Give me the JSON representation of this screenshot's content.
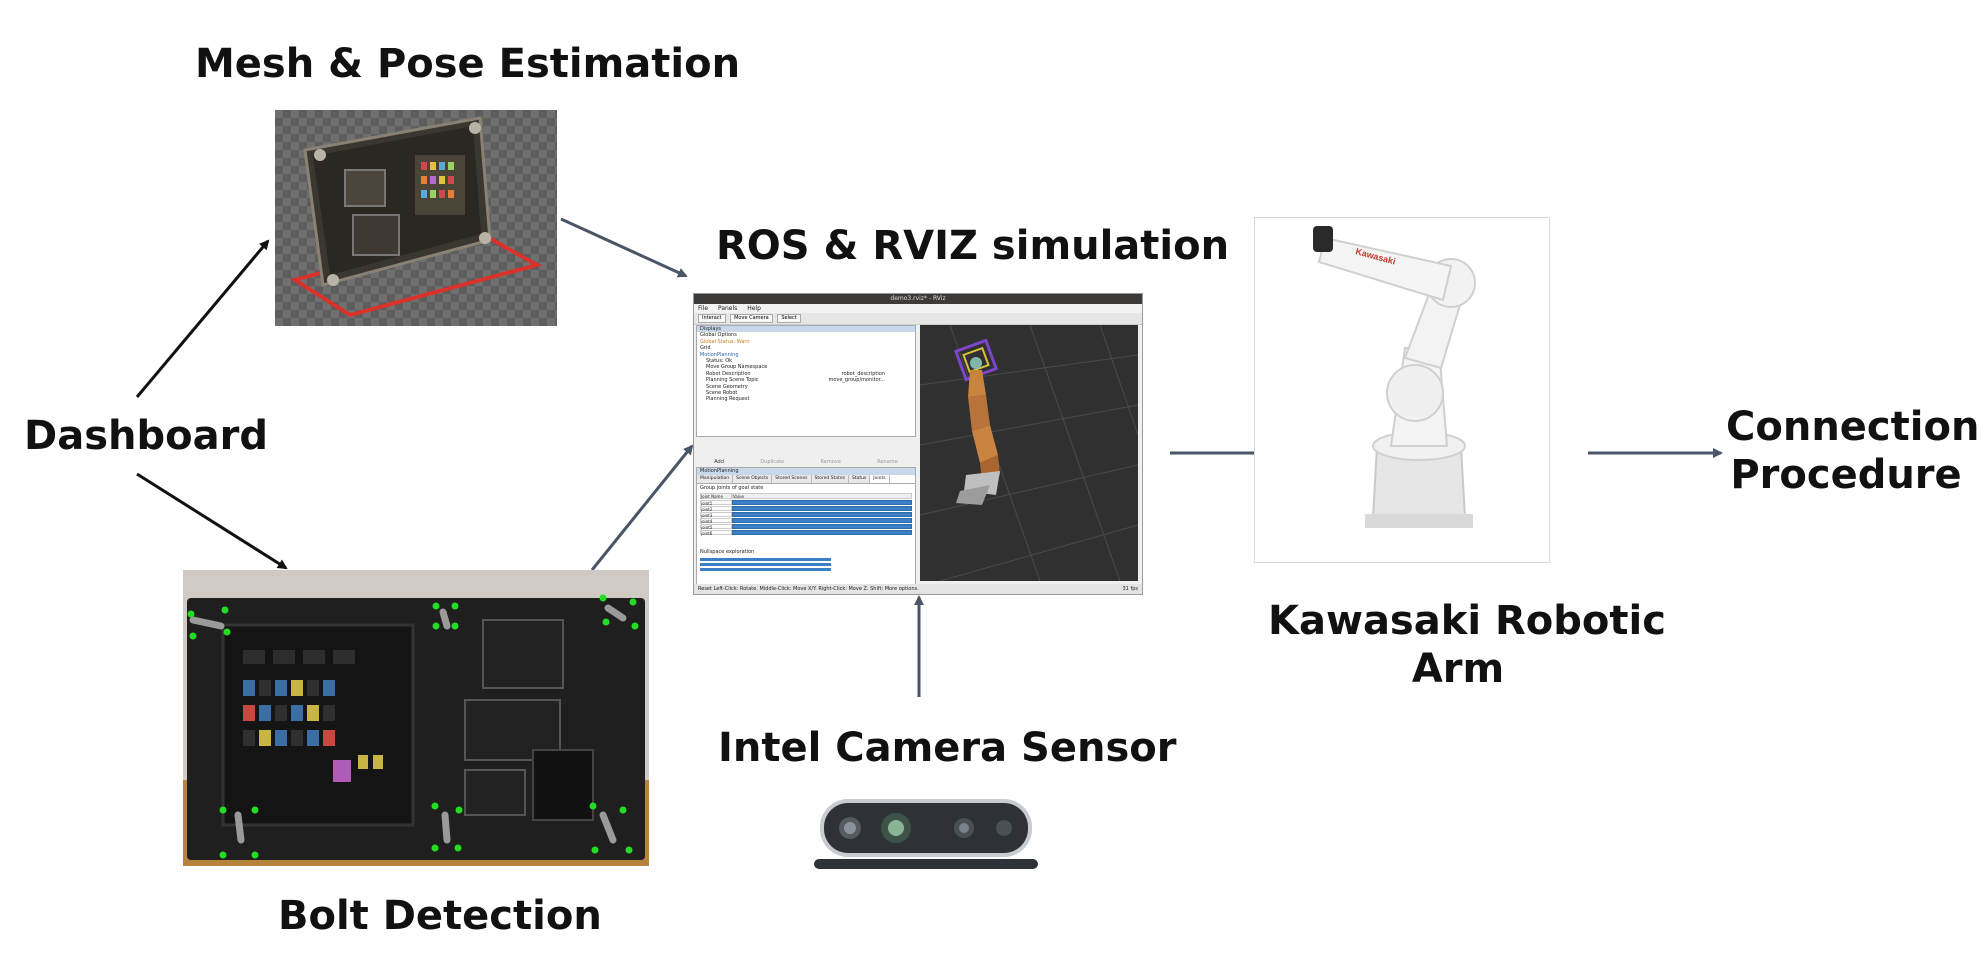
{
  "labels": {
    "mesh": "Mesh & Pose Estimation",
    "dashboard": "Dashboard",
    "bolt": "Bolt Detection",
    "ros": "ROS & RVIZ simulation",
    "camera": "Intel Camera Sensor",
    "kawasaki_line1": "Kawasaki Robotic",
    "kawasaki_line2": "Arm",
    "connection_line1": "Connection",
    "connection_line2": "Procedure"
  },
  "rviz": {
    "title": "demo3.rviz* - RViz",
    "menu": [
      "File",
      "Panels",
      "Help"
    ],
    "tools": [
      "Interact",
      "Move Camera",
      "Select"
    ],
    "displays_header": "Displays",
    "displays": [
      "Global Options",
      "Global Status: Warn",
      "Grid",
      "MotionPlanning",
      "Status: Ok",
      "Move Group Namespace",
      "Robot Description",
      "Planning Scene Topic",
      "Scene Geometry",
      "Scene Robot",
      "Planning Request"
    ],
    "display_values": [
      "robot_description",
      "move_group/monitor..."
    ],
    "buttons": [
      "Add",
      "Duplicate",
      "Remove",
      "Rename"
    ],
    "mp_header": "MotionPlanning",
    "tabs": [
      "Manipulation",
      "Scene Objects",
      "Stored Scenes",
      "Stored States",
      "Status",
      "Joints"
    ],
    "group_label": "Group joints of goal state",
    "joint_headers": [
      "Joint Name",
      "Value"
    ],
    "joints": [
      "joint1",
      "joint2",
      "joint3",
      "joint4",
      "joint5",
      "joint6"
    ],
    "nullspace": "Nullspace exploration",
    "status": "Reset   Left-Click: Rotate. Middle-Click: Move X/Y. Right-Click: Move Z. Shift: More options.",
    "fps": "31 fps"
  },
  "robot_brand": "Kawasaki",
  "colors": {
    "arrow_dark": "#4a5568",
    "arrow_black": "#111111",
    "robot_orange": "#c8843f",
    "detect_green": "#22dd22",
    "mesh_outline": "#d9322b"
  }
}
